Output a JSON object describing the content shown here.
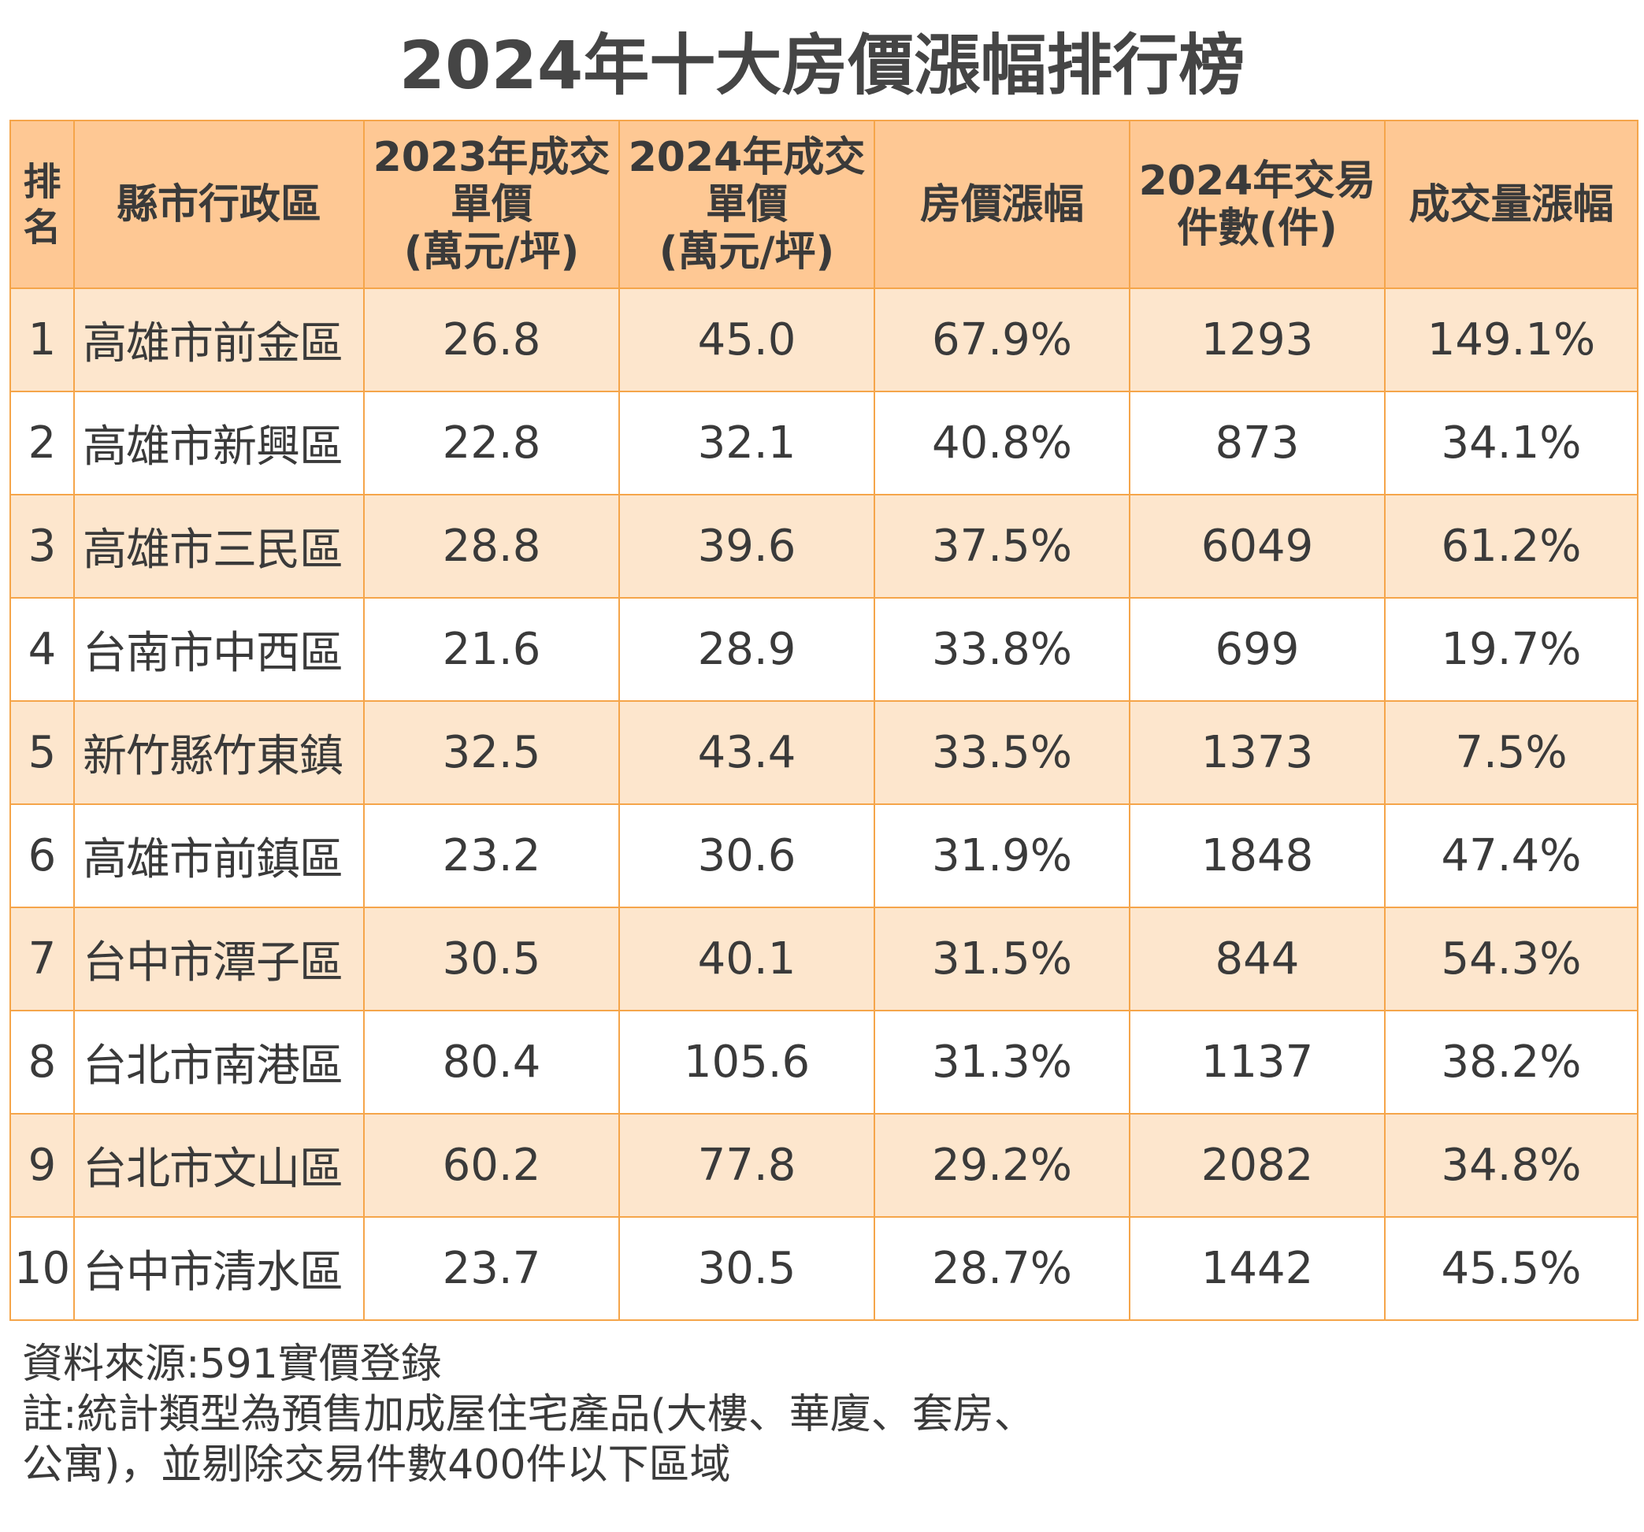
{
  "title": "2024年十大房價漲幅排行榜",
  "table": {
    "headers": {
      "rank": [
        "排",
        "名"
      ],
      "area": "縣市行政區",
      "price_2023": [
        "2023年成交",
        "單價",
        "(萬元/坪)"
      ],
      "price_2024": [
        "2024年成交",
        "單價",
        "(萬元/坪)"
      ],
      "price_growth": "房價漲幅",
      "count_2024": [
        "2024年交易",
        "件數(件)"
      ],
      "volume_growth": "成交量漲幅"
    },
    "rows": [
      {
        "rank": "1",
        "area": "高雄市前金區",
        "price_2023": "26.8",
        "price_2024": "45.0",
        "price_growth": "67.9%",
        "count_2024": "1293",
        "volume_growth": "149.1%"
      },
      {
        "rank": "2",
        "area": "高雄市新興區",
        "price_2023": "22.8",
        "price_2024": "32.1",
        "price_growth": "40.8%",
        "count_2024": "873",
        "volume_growth": "34.1%"
      },
      {
        "rank": "3",
        "area": "高雄市三民區",
        "price_2023": "28.8",
        "price_2024": "39.6",
        "price_growth": "37.5%",
        "count_2024": "6049",
        "volume_growth": "61.2%"
      },
      {
        "rank": "4",
        "area": "台南市中西區",
        "price_2023": "21.6",
        "price_2024": "28.9",
        "price_growth": "33.8%",
        "count_2024": "699",
        "volume_growth": "19.7%"
      },
      {
        "rank": "5",
        "area": "新竹縣竹東鎮",
        "price_2023": "32.5",
        "price_2024": "43.4",
        "price_growth": "33.5%",
        "count_2024": "1373",
        "volume_growth": "7.5%"
      },
      {
        "rank": "6",
        "area": "高雄市前鎮區",
        "price_2023": "23.2",
        "price_2024": "30.6",
        "price_growth": "31.9%",
        "count_2024": "1848",
        "volume_growth": "47.4%"
      },
      {
        "rank": "7",
        "area": "台中市潭子區",
        "price_2023": "30.5",
        "price_2024": "40.1",
        "price_growth": "31.5%",
        "count_2024": "844",
        "volume_growth": "54.3%"
      },
      {
        "rank": "8",
        "area": "台北市南港區",
        "price_2023": "80.4",
        "price_2024": "105.6",
        "price_growth": "31.3%",
        "count_2024": "1137",
        "volume_growth": "38.2%"
      },
      {
        "rank": "9",
        "area": "台北市文山區",
        "price_2023": "60.2",
        "price_2024": "77.8",
        "price_growth": "29.2%",
        "count_2024": "2082",
        "volume_growth": "34.8%"
      },
      {
        "rank": "10",
        "area": "台中市清水區",
        "price_2023": "23.7",
        "price_2024": "30.5",
        "price_growth": "28.7%",
        "count_2024": "1442",
        "volume_growth": "45.5%"
      }
    ]
  },
  "footer": {
    "source": "資料來源:591實價登錄",
    "note_line1": "註:統計類型為預售加成屋住宅產品(大樓、華廈、套房、",
    "note_line2": "公寓)，並剔除交易件數400件以下區域"
  },
  "colors": {
    "header_bg": "#fec894",
    "row_odd_bg": "#fde6cd",
    "row_even_bg": "#ffffff",
    "border": "#f5a54a",
    "text": "#3a3a3a"
  }
}
